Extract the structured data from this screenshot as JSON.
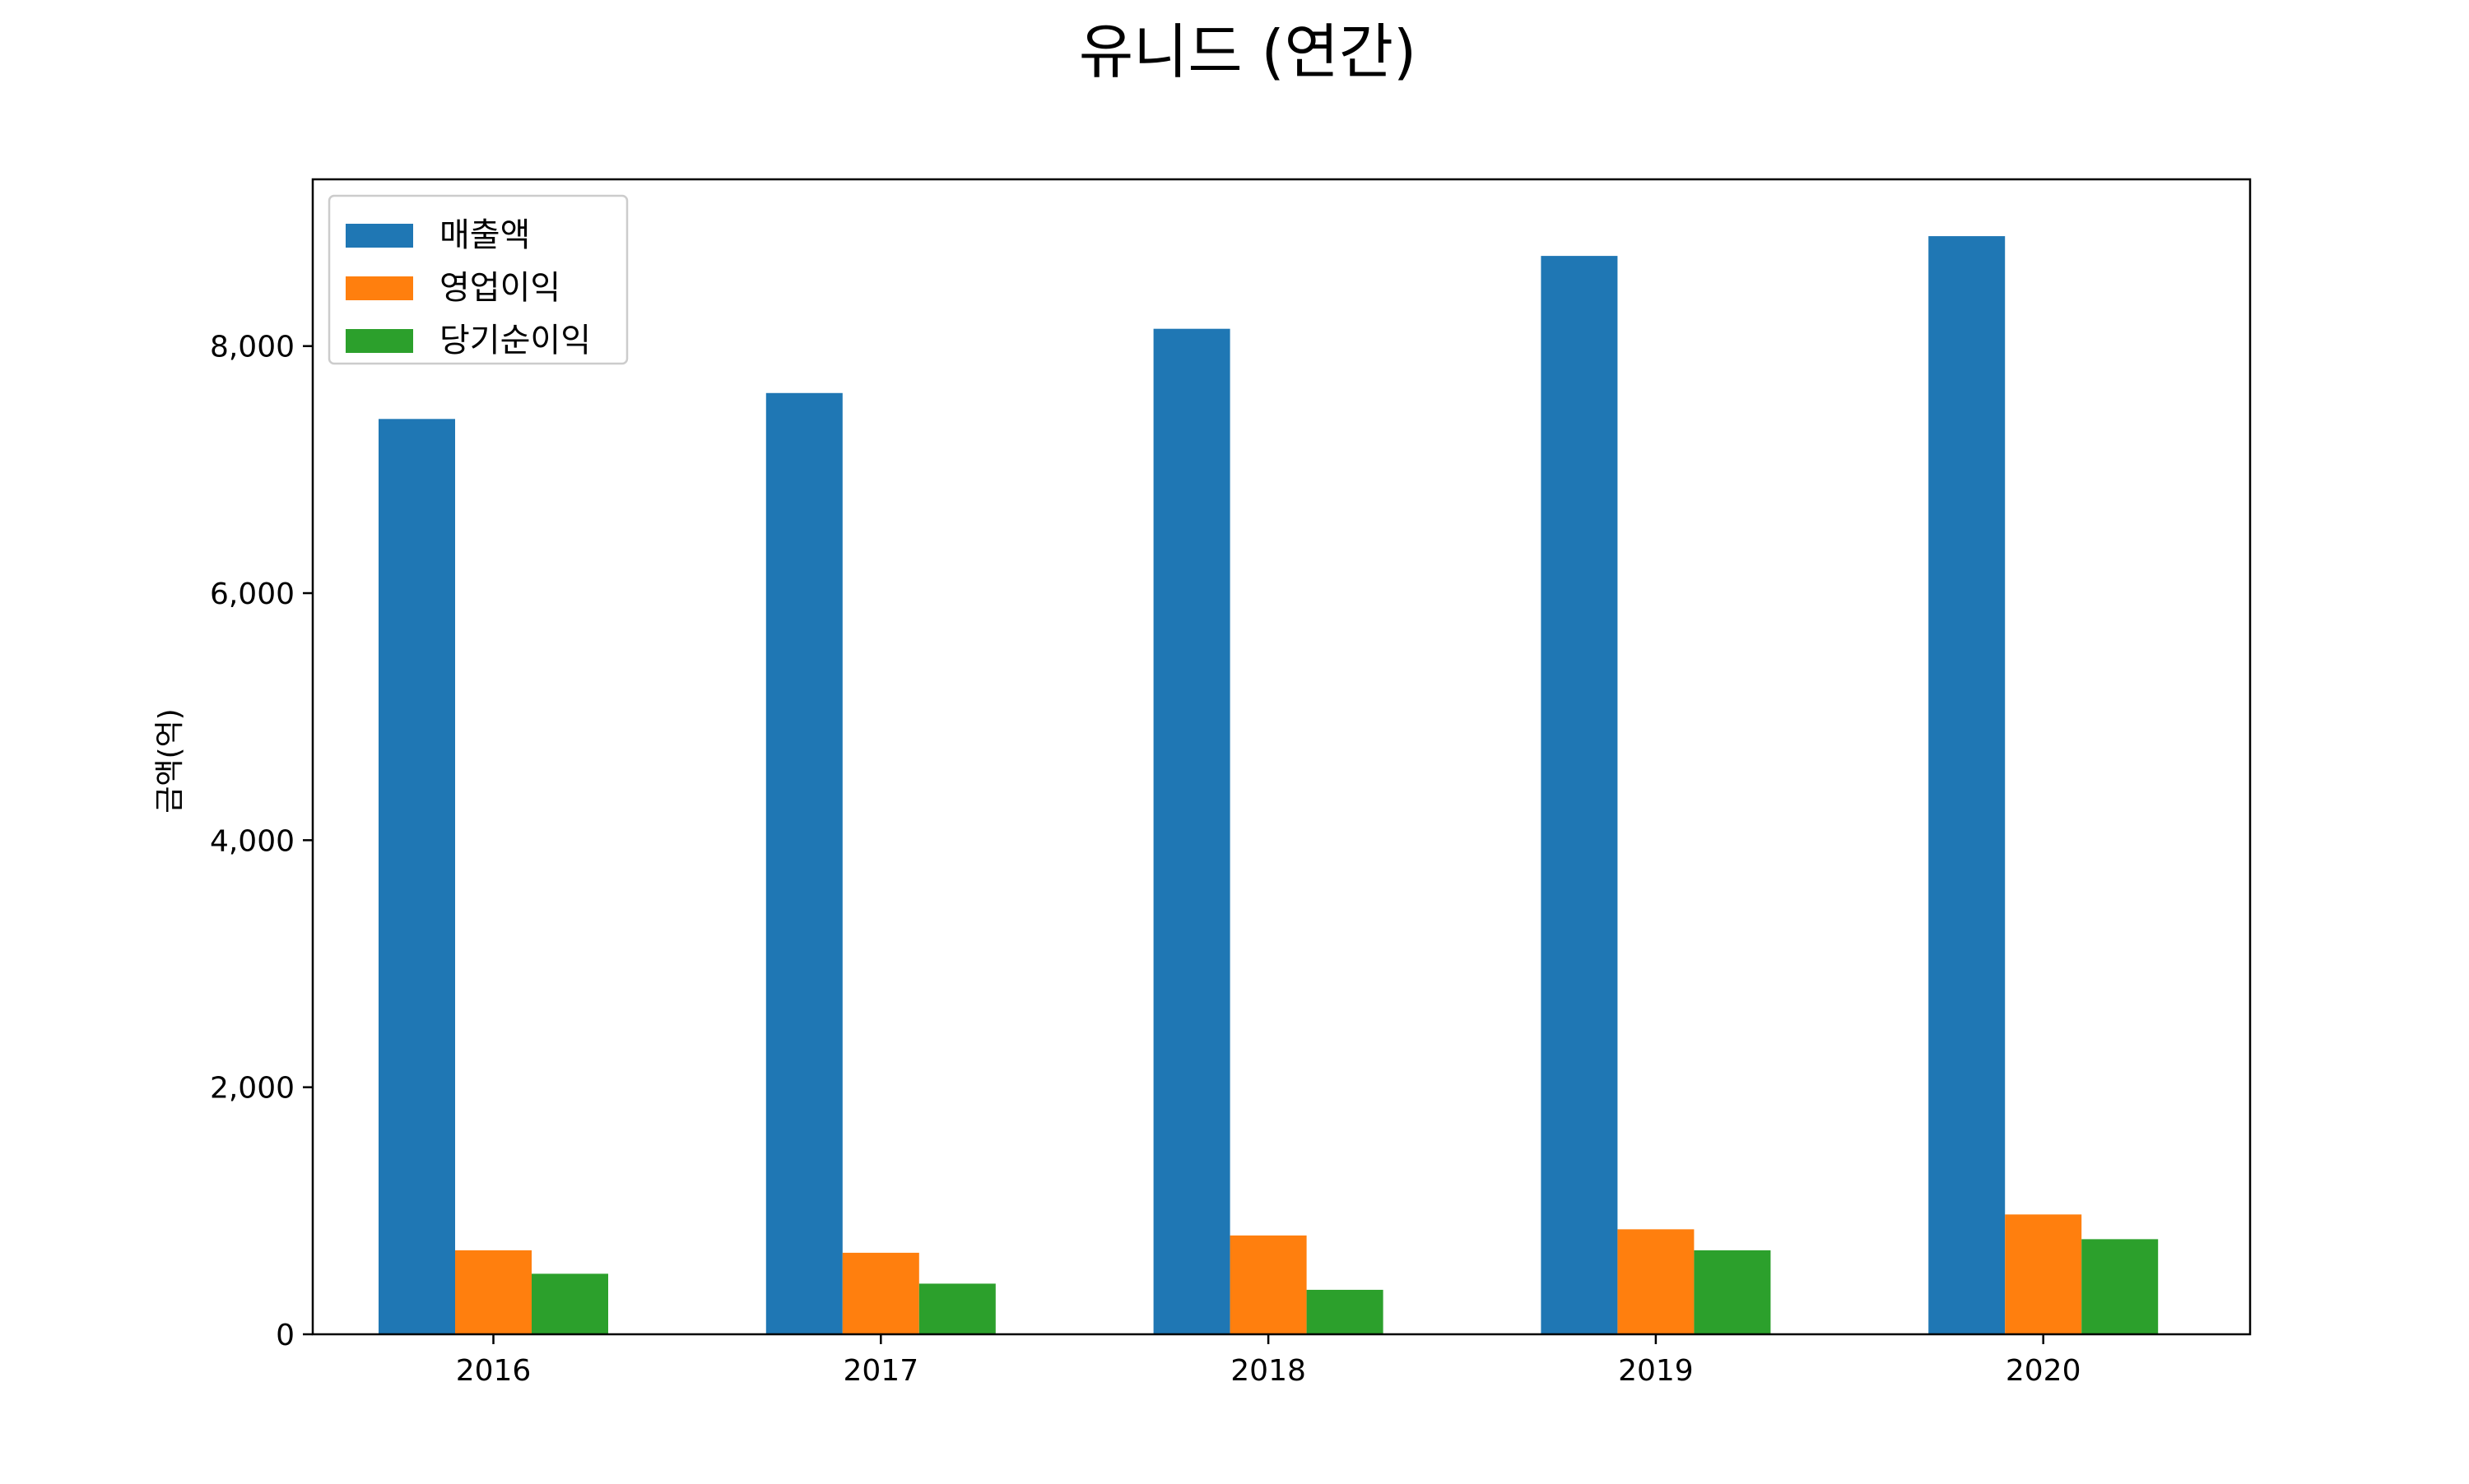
{
  "chart_data": {
    "type": "bar",
    "title": "유니드 (연간)",
    "xlabel": "",
    "ylabel": "금액(억)",
    "categories": [
      "2016",
      "2017",
      "2018",
      "2019",
      "2020"
    ],
    "series": [
      {
        "name": "매출액",
        "color": "#1f77b4",
        "values": [
          7410,
          7620,
          8140,
          8730,
          8890
        ]
      },
      {
        "name": "영업이익",
        "color": "#ff7f0e",
        "values": [
          680,
          660,
          800,
          850,
          970
        ]
      },
      {
        "name": "당기순이익",
        "color": "#2ca02c",
        "values": [
          490,
          410,
          360,
          680,
          770
        ]
      }
    ],
    "ylim": [
      0,
      9350
    ],
    "yticks": [
      0,
      2000,
      4000,
      6000,
      8000
    ],
    "ytick_labels": [
      "0",
      "2,000",
      "4,000",
      "6,000",
      "8,000"
    ],
    "grid": false,
    "legend_position": "top-left"
  }
}
